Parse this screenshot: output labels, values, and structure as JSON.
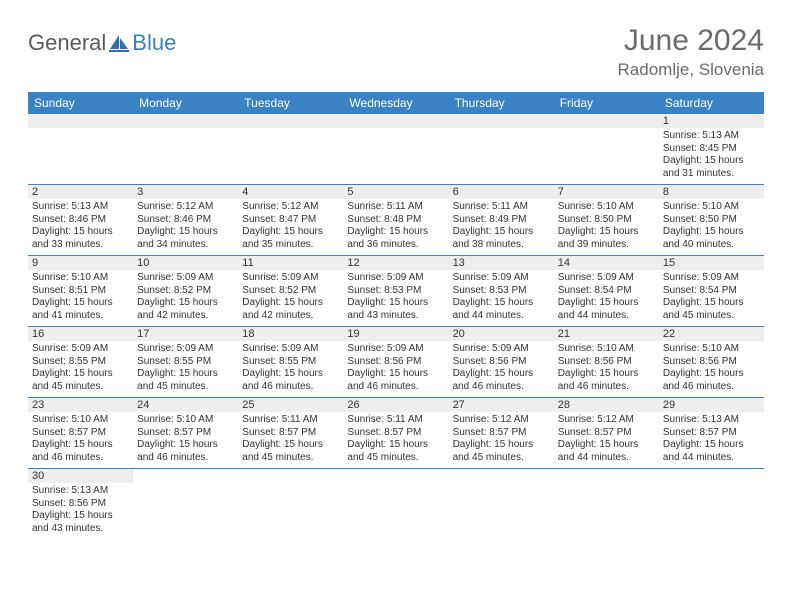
{
  "logo": {
    "general": "General",
    "blue": "Blue"
  },
  "title": "June 2024",
  "location": "Radomlje, Slovenia",
  "colors": {
    "header_bg": "#3b82c4",
    "header_text": "#ffffff",
    "daynum_bg": "#eeeeee",
    "border": "#3b82c4",
    "text": "#333333",
    "title_text": "#6b6b6b"
  },
  "day_headers": [
    "Sunday",
    "Monday",
    "Tuesday",
    "Wednesday",
    "Thursday",
    "Friday",
    "Saturday"
  ],
  "weeks": [
    [
      null,
      null,
      null,
      null,
      null,
      null,
      {
        "n": "1",
        "rise": "5:13 AM",
        "set": "8:45 PM",
        "dl": "15 hours and 31 minutes."
      }
    ],
    [
      {
        "n": "2",
        "rise": "5:13 AM",
        "set": "8:46 PM",
        "dl": "15 hours and 33 minutes."
      },
      {
        "n": "3",
        "rise": "5:12 AM",
        "set": "8:46 PM",
        "dl": "15 hours and 34 minutes."
      },
      {
        "n": "4",
        "rise": "5:12 AM",
        "set": "8:47 PM",
        "dl": "15 hours and 35 minutes."
      },
      {
        "n": "5",
        "rise": "5:11 AM",
        "set": "8:48 PM",
        "dl": "15 hours and 36 minutes."
      },
      {
        "n": "6",
        "rise": "5:11 AM",
        "set": "8:49 PM",
        "dl": "15 hours and 38 minutes."
      },
      {
        "n": "7",
        "rise": "5:10 AM",
        "set": "8:50 PM",
        "dl": "15 hours and 39 minutes."
      },
      {
        "n": "8",
        "rise": "5:10 AM",
        "set": "8:50 PM",
        "dl": "15 hours and 40 minutes."
      }
    ],
    [
      {
        "n": "9",
        "rise": "5:10 AM",
        "set": "8:51 PM",
        "dl": "15 hours and 41 minutes."
      },
      {
        "n": "10",
        "rise": "5:09 AM",
        "set": "8:52 PM",
        "dl": "15 hours and 42 minutes."
      },
      {
        "n": "11",
        "rise": "5:09 AM",
        "set": "8:52 PM",
        "dl": "15 hours and 42 minutes."
      },
      {
        "n": "12",
        "rise": "5:09 AM",
        "set": "8:53 PM",
        "dl": "15 hours and 43 minutes."
      },
      {
        "n": "13",
        "rise": "5:09 AM",
        "set": "8:53 PM",
        "dl": "15 hours and 44 minutes."
      },
      {
        "n": "14",
        "rise": "5:09 AM",
        "set": "8:54 PM",
        "dl": "15 hours and 44 minutes."
      },
      {
        "n": "15",
        "rise": "5:09 AM",
        "set": "8:54 PM",
        "dl": "15 hours and 45 minutes."
      }
    ],
    [
      {
        "n": "16",
        "rise": "5:09 AM",
        "set": "8:55 PM",
        "dl": "15 hours and 45 minutes."
      },
      {
        "n": "17",
        "rise": "5:09 AM",
        "set": "8:55 PM",
        "dl": "15 hours and 45 minutes."
      },
      {
        "n": "18",
        "rise": "5:09 AM",
        "set": "8:55 PM",
        "dl": "15 hours and 46 minutes."
      },
      {
        "n": "19",
        "rise": "5:09 AM",
        "set": "8:56 PM",
        "dl": "15 hours and 46 minutes."
      },
      {
        "n": "20",
        "rise": "5:09 AM",
        "set": "8:56 PM",
        "dl": "15 hours and 46 minutes."
      },
      {
        "n": "21",
        "rise": "5:10 AM",
        "set": "8:56 PM",
        "dl": "15 hours and 46 minutes."
      },
      {
        "n": "22",
        "rise": "5:10 AM",
        "set": "8:56 PM",
        "dl": "15 hours and 46 minutes."
      }
    ],
    [
      {
        "n": "23",
        "rise": "5:10 AM",
        "set": "8:57 PM",
        "dl": "15 hours and 46 minutes."
      },
      {
        "n": "24",
        "rise": "5:10 AM",
        "set": "8:57 PM",
        "dl": "15 hours and 46 minutes."
      },
      {
        "n": "25",
        "rise": "5:11 AM",
        "set": "8:57 PM",
        "dl": "15 hours and 45 minutes."
      },
      {
        "n": "26",
        "rise": "5:11 AM",
        "set": "8:57 PM",
        "dl": "15 hours and 45 minutes."
      },
      {
        "n": "27",
        "rise": "5:12 AM",
        "set": "8:57 PM",
        "dl": "15 hours and 45 minutes."
      },
      {
        "n": "28",
        "rise": "5:12 AM",
        "set": "8:57 PM",
        "dl": "15 hours and 44 minutes."
      },
      {
        "n": "29",
        "rise": "5:13 AM",
        "set": "8:57 PM",
        "dl": "15 hours and 44 minutes."
      }
    ],
    [
      {
        "n": "30",
        "rise": "5:13 AM",
        "set": "8:56 PM",
        "dl": "15 hours and 43 minutes."
      },
      null,
      null,
      null,
      null,
      null,
      null
    ]
  ],
  "labels": {
    "sunrise": "Sunrise:",
    "sunset": "Sunset:",
    "daylight": "Daylight:"
  }
}
